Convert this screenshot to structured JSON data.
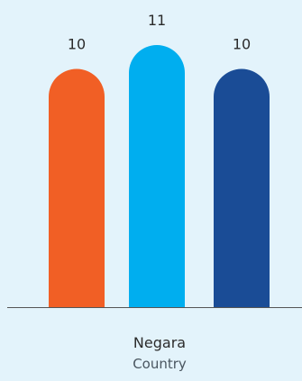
{
  "chart_data": {
    "type": "bar",
    "categories": [
      "Negara"
    ],
    "category_sublabel": "Country",
    "series": [
      {
        "values": [
          10
        ],
        "color": "#f15f25"
      },
      {
        "values": [
          11
        ],
        "color": "#00aeef"
      },
      {
        "values": [
          10
        ],
        "color": "#1a4c96"
      }
    ],
    "ylim": [
      0,
      11
    ],
    "grid": false,
    "legend": "none",
    "background": "#e3f3fb",
    "axis_color": "#555555"
  }
}
